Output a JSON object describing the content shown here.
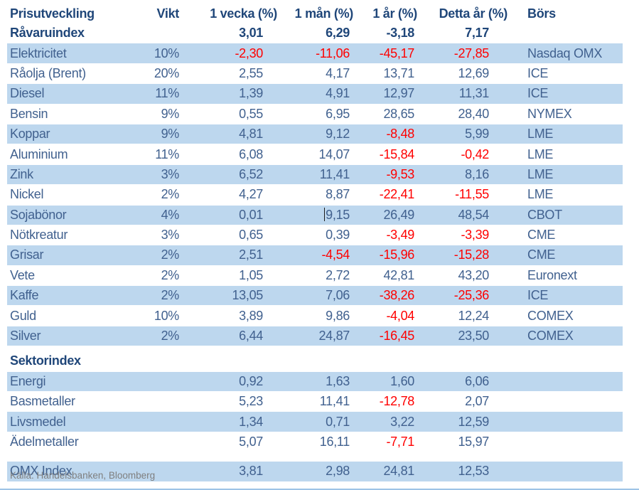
{
  "colors": {
    "highlight_row": "#BDD7EE",
    "body_text": "#41618F",
    "header_text": "#1F4679",
    "negative_text": "#FF0000",
    "footer_text": "#7F7F7F",
    "bottom_rule": "#9DC3E6"
  },
  "table": {
    "columns": [
      "Prisutveckling",
      "Vikt",
      "1 vecka (%)",
      "1 mån (%)",
      "1 år (%)",
      "Detta år (%)",
      "Börs"
    ],
    "sections": [
      {
        "rows": [
          {
            "label": "Råvaruindex",
            "vikt": "",
            "w1": "3,01",
            "m1": "6,29",
            "y1": "-3,18",
            "ytd": "7,17",
            "bors": "",
            "bold": true,
            "highlight": false
          },
          {
            "label": "Elektricitet",
            "vikt": "10%",
            "w1": "-2,30",
            "m1": "-11,06",
            "y1": "-45,17",
            "ytd": "-27,85",
            "bors": "Nasdaq OMX",
            "highlight": true
          },
          {
            "label": "Råolja (Brent)",
            "vikt": "20%",
            "w1": "2,55",
            "m1": "4,17",
            "y1": "13,71",
            "ytd": "12,69",
            "bors": "ICE",
            "highlight": false
          },
          {
            "label": "Diesel",
            "vikt": "11%",
            "w1": "1,39",
            "m1": "4,91",
            "y1": "12,97",
            "ytd": "11,31",
            "bors": "ICE",
            "highlight": true
          },
          {
            "label": "Bensin",
            "vikt": "9%",
            "w1": "0,55",
            "m1": "6,95",
            "y1": "28,65",
            "ytd": "28,40",
            "bors": "NYMEX",
            "highlight": false
          },
          {
            "label": "Koppar",
            "vikt": "9%",
            "w1": "4,81",
            "m1": "9,12",
            "y1": "-8,48",
            "ytd": "5,99",
            "bors": "LME",
            "highlight": true
          },
          {
            "label": "Aluminium",
            "vikt": "11%",
            "w1": "6,08",
            "m1": "14,07",
            "y1": "-15,84",
            "ytd": "-0,42",
            "bors": "LME",
            "highlight": false
          },
          {
            "label": "Zink",
            "vikt": "3%",
            "w1": "6,52",
            "m1": "11,41",
            "y1": "-9,53",
            "ytd": "8,16",
            "bors": "LME",
            "highlight": true
          },
          {
            "label": "Nickel",
            "vikt": "2%",
            "w1": "4,27",
            "m1": "8,87",
            "y1": "-22,41",
            "ytd": "-11,55",
            "bors": "LME",
            "highlight": false
          },
          {
            "label": "Sojabönor",
            "vikt": "4%",
            "w1": "0,01",
            "m1": "9,15",
            "y1": "26,49",
            "ytd": "48,54",
            "bors": "CBOT",
            "highlight": true,
            "text_cursor_before_m1": true
          },
          {
            "label": "Nötkreatur",
            "vikt": "3%",
            "w1": "0,65",
            "m1": "0,39",
            "y1": "-3,49",
            "ytd": "-3,39",
            "bors": "CME",
            "highlight": false
          },
          {
            "label": "Grisar",
            "vikt": "2%",
            "w1": "2,51",
            "m1": "-4,54",
            "y1": "-15,96",
            "ytd": "-15,28",
            "bors": "CME",
            "highlight": true
          },
          {
            "label": "Vete",
            "vikt": "2%",
            "w1": "1,05",
            "m1": "2,72",
            "y1": "42,81",
            "ytd": "43,20",
            "bors": "Euronext",
            "highlight": false
          },
          {
            "label": "Kaffe",
            "vikt": "2%",
            "w1": "13,05",
            "m1": "7,06",
            "y1": "-38,26",
            "ytd": "-25,36",
            "bors": "ICE",
            "highlight": true
          },
          {
            "label": "Guld",
            "vikt": "10%",
            "w1": "3,89",
            "m1": "9,86",
            "y1": "-4,04",
            "ytd": "12,24",
            "bors": "COMEX",
            "highlight": false
          },
          {
            "label": "Silver",
            "vikt": "2%",
            "w1": "6,44",
            "m1": "24,87",
            "y1": "-16,45",
            "ytd": "23,50",
            "bors": "COMEX",
            "highlight": true
          }
        ]
      },
      {
        "title": "Sektorindex",
        "rows": [
          {
            "label": "Energi",
            "vikt": "",
            "w1": "0,92",
            "m1": "1,63",
            "y1": "1,60",
            "ytd": "6,06",
            "bors": "",
            "highlight": true
          },
          {
            "label": "Basmetaller",
            "vikt": "",
            "w1": "5,23",
            "m1": "11,41",
            "y1": "-12,78",
            "ytd": "2,07",
            "bors": "",
            "highlight": false
          },
          {
            "label": "Livsmedel",
            "vikt": "",
            "w1": "1,34",
            "m1": "0,71",
            "y1": "3,22",
            "ytd": "12,59",
            "bors": "",
            "highlight": true
          },
          {
            "label": "Ädelmetaller",
            "vikt": "",
            "w1": "5,07",
            "m1": "16,11",
            "y1": "-7,71",
            "ytd": "15,97",
            "bors": "",
            "highlight": false
          }
        ]
      },
      {
        "rows": [
          {
            "label": "OMX Index",
            "vikt": "",
            "w1": "3,81",
            "m1": "2,98",
            "y1": "24,81",
            "ytd": "12,53",
            "bors": "",
            "highlight": true
          }
        ]
      }
    ]
  },
  "footer": {
    "source": "Källa: Handelsbanken, Bloomberg"
  }
}
